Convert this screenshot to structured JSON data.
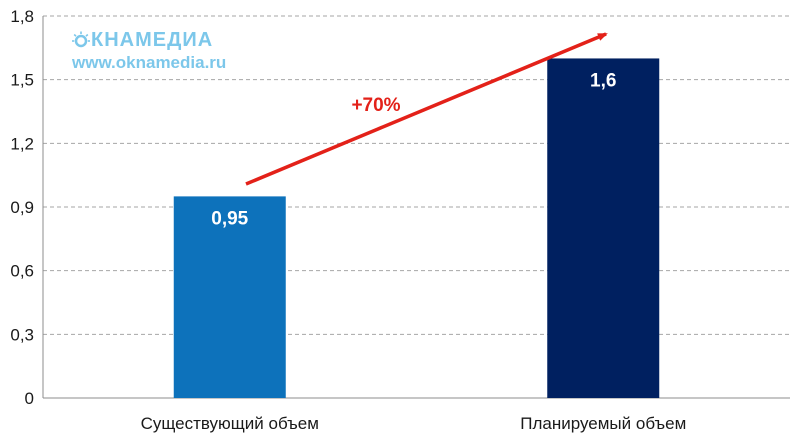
{
  "watermark": {
    "brand_text": "КНАМЕДИА",
    "url": "www.oknamedia.ru",
    "color": "#7cc7ea"
  },
  "annotation": {
    "text": "+70%",
    "color": "#e32119"
  },
  "colors": {
    "bar_1": "#0d72bb",
    "bar_2": "#002060",
    "grid": "#a6a6a6",
    "axis": "#8c8c8c"
  },
  "chart_data": {
    "type": "bar",
    "categories": [
      "Существующий объем",
      "Планируемый объем"
    ],
    "values": [
      0.95,
      1.6
    ],
    "data_labels": [
      "0,95",
      "1,6"
    ],
    "yticks": [
      0,
      0.3,
      0.6,
      0.9,
      1.2,
      1.5,
      1.8
    ],
    "ytick_labels": [
      "0",
      "0,3",
      "0,6",
      "0,9",
      "1,2",
      "1,5",
      "1,8"
    ],
    "ylim": [
      0,
      1.8
    ],
    "grid": true,
    "legend": "none",
    "title": "",
    "xlabel": "",
    "ylabel": ""
  }
}
